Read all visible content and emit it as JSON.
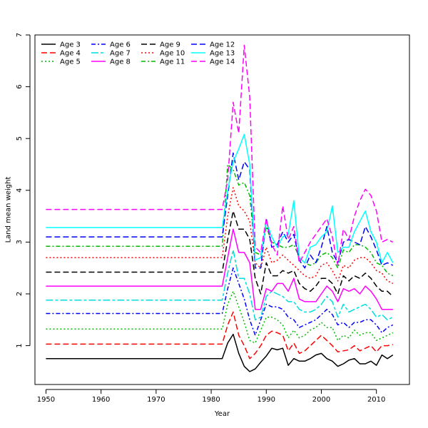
{
  "chart_data": {
    "type": "line",
    "title": "",
    "xlabel": "Year",
    "ylabel": "Land mean weight",
    "xlim": [
      1948,
      2016
    ],
    "ylim": [
      0.25,
      7.0
    ],
    "xticks": [
      1950,
      1960,
      1970,
      1980,
      1990,
      2000,
      2010
    ],
    "yticks": [
      1,
      2,
      3,
      4,
      5,
      6,
      7
    ],
    "legend_position": "top-left",
    "grid": false,
    "series": [
      {
        "name": "Age 3",
        "color": "#000000",
        "dash": "solid",
        "x": [
          1950,
          1982,
          1983,
          1984,
          1985,
          1986,
          1987,
          1988,
          1989,
          1990,
          1991,
          1992,
          1993,
          1994,
          1995,
          1996,
          1997,
          1998,
          1999,
          2000,
          2001,
          2002,
          2003,
          2004,
          2005,
          2006,
          2007,
          2008,
          2009,
          2010,
          2011,
          2012,
          2013
        ],
        "y": [
          0.75,
          0.75,
          1.05,
          1.22,
          0.85,
          0.6,
          0.5,
          0.55,
          0.68,
          0.8,
          0.95,
          0.92,
          0.95,
          0.62,
          0.75,
          0.7,
          0.7,
          0.75,
          0.82,
          0.85,
          0.75,
          0.7,
          0.6,
          0.65,
          0.72,
          0.75,
          0.65,
          0.65,
          0.7,
          0.62,
          0.82,
          0.75,
          0.82
        ]
      },
      {
        "name": "Age 4",
        "color": "#ff0000",
        "dash": "long",
        "x": [
          1950,
          1982,
          1983,
          1984,
          1985,
          1986,
          1987,
          1988,
          1989,
          1990,
          1991,
          1992,
          1993,
          1994,
          1995,
          1996,
          1997,
          1998,
          1999,
          2000,
          2001,
          2002,
          2003,
          2004,
          2005,
          2006,
          2007,
          2008,
          2009,
          2010,
          2011,
          2012,
          2013
        ],
        "y": [
          1.03,
          1.03,
          1.4,
          1.65,
          1.2,
          1.0,
          0.75,
          0.85,
          1.0,
          1.2,
          1.28,
          1.25,
          1.2,
          0.9,
          1.05,
          0.85,
          0.9,
          1.0,
          1.1,
          1.2,
          1.1,
          1.0,
          0.88,
          0.9,
          0.92,
          1.0,
          0.9,
          0.95,
          1.0,
          0.88,
          1.0,
          1.0,
          1.02
        ]
      },
      {
        "name": "Age 5",
        "color": "#00bb00",
        "dash": "dotted",
        "x": [
          1950,
          1982,
          1983,
          1984,
          1985,
          1986,
          1987,
          1988,
          1989,
          1990,
          1991,
          1992,
          1993,
          1994,
          1995,
          1996,
          1997,
          1998,
          1999,
          2000,
          2001,
          2002,
          2003,
          2004,
          2005,
          2006,
          2007,
          2008,
          2009,
          2010,
          2011,
          2012,
          2013
        ],
        "y": [
          1.32,
          1.32,
          1.8,
          2.05,
          1.75,
          1.45,
          1.1,
          1.05,
          1.3,
          1.55,
          1.55,
          1.5,
          1.4,
          1.15,
          1.3,
          1.15,
          1.2,
          1.3,
          1.35,
          1.45,
          1.35,
          1.35,
          1.1,
          1.2,
          1.15,
          1.3,
          1.2,
          1.25,
          1.25,
          1.1,
          1.15,
          1.2,
          1.25
        ]
      },
      {
        "name": "Age 6",
        "color": "#0000ff",
        "dash": "dashdot",
        "x": [
          1950,
          1982,
          1983,
          1984,
          1985,
          1986,
          1987,
          1988,
          1989,
          1990,
          1991,
          1992,
          1993,
          1994,
          1995,
          1996,
          1997,
          1998,
          1999,
          2000,
          2001,
          2002,
          2003,
          2004,
          2005,
          2006,
          2007,
          2008,
          2009,
          2010,
          2011,
          2012,
          2013
        ],
        "y": [
          1.62,
          1.62,
          2.1,
          2.5,
          2.2,
          1.9,
          1.5,
          1.2,
          1.5,
          1.8,
          1.75,
          1.75,
          1.7,
          1.55,
          1.5,
          1.35,
          1.4,
          1.45,
          1.5,
          1.6,
          1.7,
          1.6,
          1.4,
          1.45,
          1.35,
          1.45,
          1.45,
          1.5,
          1.5,
          1.4,
          1.25,
          1.35,
          1.4
        ]
      },
      {
        "name": "Age 7",
        "color": "#00dddd",
        "dash": "longshort",
        "x": [
          1950,
          1982,
          1983,
          1984,
          1985,
          1986,
          1987,
          1988,
          1989,
          1990,
          1991,
          1992,
          1993,
          1994,
          1995,
          1996,
          1997,
          1998,
          1999,
          2000,
          2001,
          2002,
          2003,
          2004,
          2005,
          2006,
          2007,
          2008,
          2009,
          2010,
          2011,
          2012,
          2013
        ],
        "y": [
          1.88,
          1.88,
          2.4,
          2.85,
          2.3,
          2.3,
          2.0,
          1.5,
          1.55,
          1.95,
          2.05,
          2.0,
          1.95,
          1.85,
          1.85,
          1.7,
          1.65,
          1.65,
          1.7,
          1.8,
          1.95,
          1.85,
          1.55,
          1.8,
          1.65,
          1.7,
          1.75,
          1.8,
          1.7,
          1.55,
          1.6,
          1.5,
          1.55
        ]
      },
      {
        "name": "Age 8",
        "color": "#ff00ff",
        "dash": "solid",
        "x": [
          1950,
          1982,
          1983,
          1984,
          1985,
          1986,
          1987,
          1988,
          1989,
          1990,
          1991,
          1992,
          1993,
          1994,
          1995,
          1996,
          1997,
          1998,
          1999,
          2000,
          2001,
          2002,
          2003,
          2004,
          2005,
          2006,
          2007,
          2008,
          2009,
          2010,
          2011,
          2012,
          2013
        ],
        "y": [
          2.15,
          2.15,
          2.7,
          3.25,
          2.8,
          2.8,
          2.6,
          1.7,
          1.7,
          2.1,
          2.05,
          2.2,
          2.2,
          2.05,
          2.3,
          1.9,
          1.85,
          1.85,
          1.85,
          2.0,
          2.15,
          2.05,
          1.85,
          2.1,
          2.05,
          2.1,
          2.0,
          2.15,
          2.05,
          1.9,
          1.7,
          1.7,
          1.7
        ]
      },
      {
        "name": "Age 9",
        "color": "#000000",
        "dash": "long",
        "x": [
          1950,
          1982,
          1983,
          1984,
          1985,
          1986,
          1987,
          1988,
          1989,
          1990,
          1991,
          1992,
          1993,
          1994,
          1995,
          1996,
          1997,
          1998,
          1999,
          2000,
          2001,
          2002,
          2003,
          2004,
          2005,
          2006,
          2007,
          2008,
          2009,
          2010,
          2011,
          2012,
          2013
        ],
        "y": [
          2.42,
          2.42,
          3.05,
          3.6,
          3.25,
          3.25,
          3.05,
          2.3,
          2.0,
          2.6,
          2.35,
          2.35,
          2.45,
          2.4,
          2.45,
          2.2,
          2.1,
          2.05,
          2.15,
          2.3,
          2.3,
          2.2,
          2.0,
          2.35,
          2.25,
          2.35,
          2.3,
          2.4,
          2.3,
          2.15,
          2.05,
          2.05,
          1.95
        ]
      },
      {
        "name": "Age 10",
        "color": "#ff0000",
        "dash": "dotted",
        "x": [
          1950,
          1982,
          1983,
          1984,
          1985,
          1986,
          1987,
          1988,
          1989,
          1990,
          1991,
          1992,
          1993,
          1994,
          1995,
          1996,
          1997,
          1998,
          1999,
          2000,
          2001,
          2002,
          2003,
          2004,
          2005,
          2006,
          2007,
          2008,
          2009,
          2010,
          2011,
          2012,
          2013
        ],
        "y": [
          2.7,
          2.7,
          3.5,
          4.05,
          3.7,
          3.6,
          3.4,
          2.6,
          2.5,
          2.9,
          2.6,
          2.65,
          2.75,
          2.65,
          2.55,
          2.45,
          2.35,
          2.3,
          2.35,
          2.55,
          2.6,
          2.45,
          2.25,
          2.55,
          2.5,
          2.65,
          2.7,
          2.7,
          2.6,
          2.45,
          2.4,
          2.25,
          2.2
        ]
      },
      {
        "name": "Age 11",
        "color": "#00bb00",
        "dash": "dashdot",
        "x": [
          1950,
          1982,
          1983,
          1984,
          1985,
          1986,
          1987,
          1988,
          1989,
          1990,
          1991,
          1992,
          1993,
          1994,
          1995,
          1996,
          1997,
          1998,
          1999,
          2000,
          2001,
          2002,
          2003,
          2004,
          2005,
          2006,
          2007,
          2008,
          2009,
          2010,
          2011,
          2012,
          2013
        ],
        "y": [
          2.92,
          2.92,
          4.5,
          4.4,
          4.1,
          4.15,
          3.9,
          2.8,
          2.75,
          3.3,
          3.0,
          2.95,
          2.9,
          2.9,
          2.95,
          2.7,
          2.6,
          2.55,
          2.6,
          2.75,
          2.8,
          2.7,
          2.5,
          2.85,
          2.8,
          2.95,
          2.95,
          2.9,
          2.8,
          2.6,
          2.55,
          2.4,
          2.35
        ]
      },
      {
        "name": "Age 12",
        "color": "#0000ff",
        "dash": "long",
        "x": [
          1950,
          1982,
          1983,
          1984,
          1985,
          1986,
          1987,
          1988,
          1989,
          1990,
          1991,
          1992,
          1993,
          1994,
          1995,
          1996,
          1997,
          1998,
          1999,
          2000,
          2001,
          2002,
          2003,
          2004,
          2005,
          2006,
          2007,
          2008,
          2009,
          2010,
          2011,
          2012,
          2013
        ],
        "y": [
          3.1,
          3.1,
          3.9,
          4.72,
          4.2,
          4.55,
          4.4,
          2.5,
          2.5,
          3.45,
          2.9,
          2.95,
          3.2,
          3.0,
          3.15,
          2.65,
          2.5,
          2.75,
          2.6,
          2.9,
          3.3,
          2.8,
          2.6,
          3.0,
          3.05,
          3.0,
          2.95,
          3.3,
          3.1,
          2.85,
          2.55,
          2.6,
          2.55
        ]
      },
      {
        "name": "Age 13",
        "color": "#00ffff",
        "dash": "solid",
        "x": [
          1950,
          1982,
          1983,
          1984,
          1985,
          1986,
          1987,
          1988,
          1989,
          1990,
          1991,
          1992,
          1993,
          1994,
          1995,
          1996,
          1997,
          1998,
          1999,
          2000,
          2001,
          2002,
          2003,
          2004,
          2005,
          2006,
          2007,
          2008,
          2009,
          2010,
          2011,
          2012,
          2013
        ],
        "y": [
          3.28,
          3.28,
          4.0,
          4.55,
          4.8,
          5.08,
          4.5,
          2.65,
          2.7,
          3.4,
          3.1,
          2.9,
          3.1,
          3.15,
          3.8,
          2.7,
          2.6,
          2.9,
          2.95,
          3.1,
          3.2,
          3.7,
          2.8,
          2.9,
          2.9,
          3.2,
          3.4,
          3.6,
          3.2,
          3.0,
          2.6,
          2.8,
          2.6
        ]
      },
      {
        "name": "Age 14",
        "color": "#ff00ff",
        "dash": "long",
        "x": [
          1950,
          1982,
          1983,
          1984,
          1985,
          1986,
          1987,
          1988,
          1989,
          1990,
          1991,
          1992,
          1993,
          1994,
          1995,
          1996,
          1997,
          1998,
          1999,
          2000,
          2001,
          2002,
          2003,
          2004,
          2005,
          2006,
          2007,
          2008,
          2009,
          2010,
          2011,
          2012,
          2013
        ],
        "y": [
          3.63,
          3.63,
          4.2,
          5.7,
          5.1,
          6.8,
          5.8,
          2.9,
          2.8,
          3.45,
          2.95,
          2.75,
          3.7,
          3.05,
          3.3,
          2.6,
          2.8,
          3.0,
          3.15,
          3.3,
          3.45,
          3.1,
          2.55,
          3.25,
          3.05,
          3.5,
          3.8,
          4.02,
          3.9,
          3.6,
          3.0,
          3.05,
          3.0
        ]
      }
    ]
  }
}
